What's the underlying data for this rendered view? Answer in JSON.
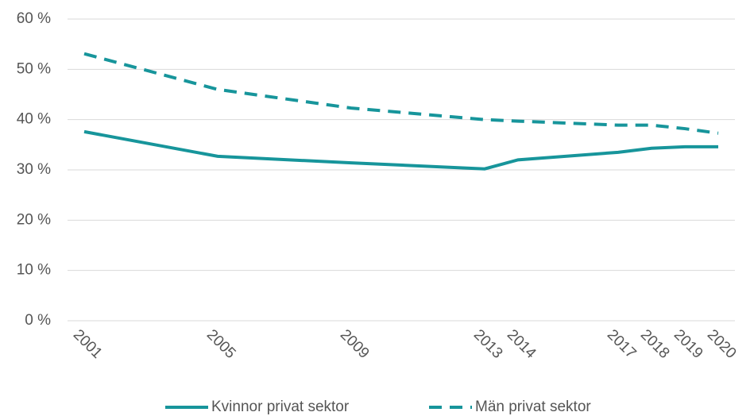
{
  "chart_data": {
    "type": "line",
    "x": [
      2001,
      2005,
      2009,
      2013,
      2014,
      2017,
      2018,
      2019,
      2020
    ],
    "series": [
      {
        "name": "Kvinnor privat sektor",
        "color": "#17959b",
        "dash": "solid",
        "values": [
          37.6,
          32.7,
          31.4,
          30.2,
          32.0,
          33.5,
          34.3,
          34.6,
          34.6
        ]
      },
      {
        "name": "Män privat sektor",
        "color": "#17959b",
        "dash": "dashed",
        "values": [
          53.1,
          46.0,
          42.3,
          40.0,
          39.7,
          38.9,
          38.9,
          38.2,
          37.3
        ]
      }
    ],
    "xlim": [
      2000.5,
      2020.5
    ],
    "xticks": [
      2001,
      2005,
      2009,
      2013,
      2014,
      2017,
      2018,
      2019,
      2020
    ],
    "ylim": [
      0,
      60
    ],
    "yticks": [
      {
        "value": 0,
        "label": "0 %"
      },
      {
        "value": 10,
        "label": "10 %"
      },
      {
        "value": 20,
        "label": "20 %"
      },
      {
        "value": 30,
        "label": "30 %"
      },
      {
        "value": 40,
        "label": "40 %"
      },
      {
        "value": 50,
        "label": "50 %"
      },
      {
        "value": 60,
        "label": "60 %"
      }
    ],
    "grid": true,
    "legend": "bottom"
  }
}
